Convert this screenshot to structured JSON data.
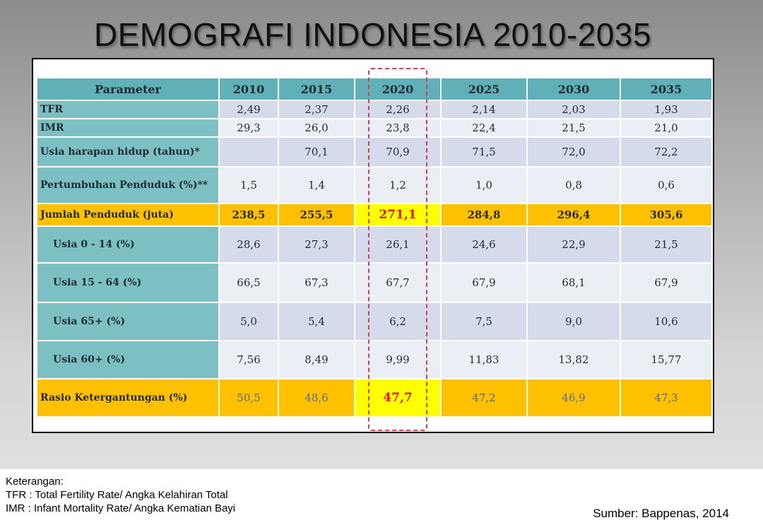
{
  "title": "DEMOGRAFI INDONESIA 2010-2035",
  "table": {
    "header": [
      "Parameter",
      "2010",
      "2015",
      "2020",
      "2025",
      "2030",
      "2035"
    ],
    "rows": [
      {
        "label": "TFR",
        "values": [
          "2,49",
          "2,37",
          "2,26",
          "2,14",
          "2,03",
          "1,93"
        ]
      },
      {
        "label": "IMR",
        "values": [
          "29,3",
          "26,0",
          "23,8",
          "22,4",
          "21,5",
          "21,0"
        ]
      },
      {
        "label": "Usia harapan hidup (tahun)*",
        "values": [
          "",
          "70,1",
          "70,9",
          "71,5",
          "72,0",
          "72,2"
        ]
      },
      {
        "label": "Pertumbuhan  Penduduk (%)**",
        "values": [
          "1,5",
          "1,4",
          "1,2",
          "1,0",
          "0,8",
          "0,6"
        ]
      },
      {
        "label": "Jumlah Penduduk (juta)",
        "values": [
          "238,5",
          "255,5",
          "271,1",
          "284,8",
          "296,4",
          "305,6"
        ]
      },
      {
        "label": "Usia 0 - 14 (%)",
        "values": [
          "28,6",
          "27,3",
          "26,1",
          "24,6",
          "22,9",
          "21,5"
        ]
      },
      {
        "label": "Usia 15 - 64 (%)",
        "values": [
          "66,5",
          "67,3",
          "67,7",
          "67,9",
          "68,1",
          "67,9"
        ]
      },
      {
        "label": "Usia 65+ (%)",
        "values": [
          "5,0",
          "5,4",
          "6,2",
          "7,5",
          "9,0",
          "10,6"
        ]
      },
      {
        "label": "Usia 60+  (%)",
        "values": [
          "7,56",
          "8,49",
          "9,99",
          "11,83",
          "13,82",
          "15,77"
        ]
      },
      {
        "label": "Rasio Ketergantungan (%)",
        "values": [
          "50,5",
          "48,6",
          "47,7",
          "47,2",
          "46,9",
          "47,3"
        ]
      }
    ]
  },
  "notes": {
    "heading": "Keterangan:",
    "tfr": "TFR : Total Fertility Rate/ Angka Kelahiran Total",
    "imr": "IMR : Infant Mortality Rate/ Angka Kematian Bayi"
  },
  "source": "Sumber: Bappenas, 2014",
  "colors": {
    "header": "#5fb0b7",
    "param_cell": "#7cc0c4",
    "highlight_row": "#ffc000",
    "highlight_2020": "#ffff00",
    "highlight_text": "#e0162b"
  }
}
